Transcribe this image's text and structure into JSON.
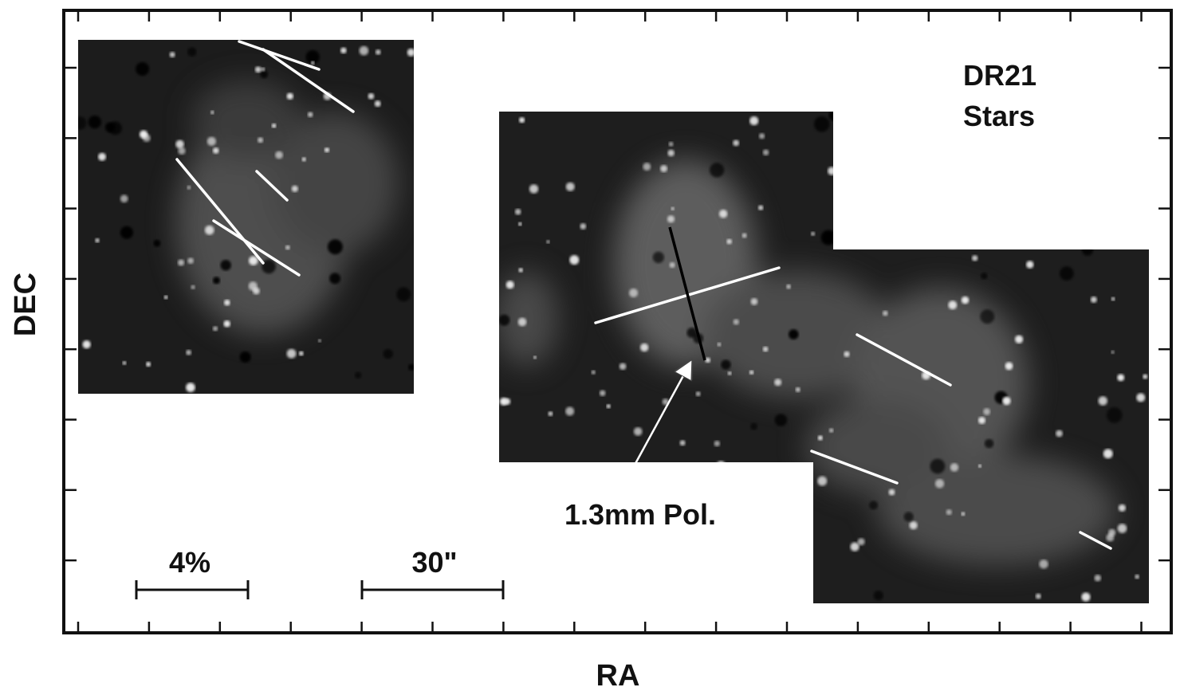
{
  "figure": {
    "label": {
      "line1": "DR21",
      "line2": "Stars"
    },
    "y_axis_label": "DEC",
    "x_axis_label": "RA",
    "scale_bars": {
      "polarization": "4%",
      "angular": "30\""
    },
    "annotation": "1.3mm Pol."
  }
}
